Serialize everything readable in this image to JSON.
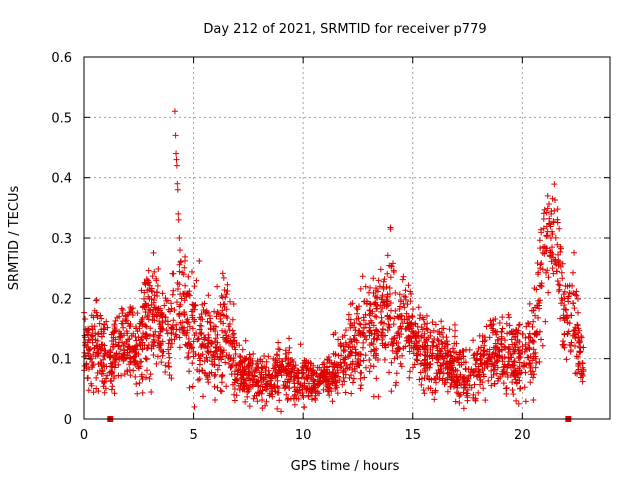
{
  "chart_data": {
    "type": "scatter",
    "title": "Day 212 of 2021, SRMTID for receiver p779",
    "xlabel": "GPS time / hours",
    "ylabel": "SRMTID / TECUs",
    "xlim": [
      0,
      24
    ],
    "ylim": [
      0,
      0.6
    ],
    "x_ticks": [
      0,
      5,
      10,
      15,
      20
    ],
    "x_tick_labels": [
      "0",
      "5",
      "10",
      "15",
      "20"
    ],
    "y_ticks": [
      0,
      0.1,
      0.2,
      0.3,
      0.4,
      0.5,
      0.6
    ],
    "y_tick_labels": [
      "0",
      "0.1",
      "0.2",
      "0.3",
      "0.4",
      "0.5",
      "0.6"
    ],
    "grid": true,
    "marker": "+",
    "color": "#e00000",
    "gap_markers_x": [
      1.2,
      22.1
    ],
    "envelope": {
      "description": "approximate central tendency and spread of the dense point cloud, hour by hour",
      "x": [
        0.0,
        0.5,
        1.0,
        1.5,
        2.0,
        2.5,
        3.0,
        3.5,
        4.0,
        4.2,
        4.5,
        5.0,
        5.5,
        6.0,
        6.5,
        7.0,
        7.5,
        8.0,
        8.5,
        9.0,
        9.5,
        10.0,
        10.5,
        11.0,
        11.5,
        12.0,
        12.5,
        13.0,
        13.5,
        14.0,
        14.5,
        15.0,
        15.5,
        16.0,
        16.5,
        17.0,
        17.5,
        18.0,
        18.5,
        19.0,
        19.5,
        20.0,
        20.5,
        21.0,
        21.3,
        21.6,
        22.0,
        22.3,
        22.6,
        22.8
      ],
      "center": [
        0.12,
        0.12,
        0.1,
        0.12,
        0.13,
        0.11,
        0.17,
        0.15,
        0.15,
        0.17,
        0.2,
        0.14,
        0.13,
        0.12,
        0.15,
        0.08,
        0.07,
        0.06,
        0.07,
        0.08,
        0.07,
        0.07,
        0.06,
        0.07,
        0.08,
        0.11,
        0.13,
        0.15,
        0.16,
        0.18,
        0.15,
        0.14,
        0.12,
        0.11,
        0.1,
        0.08,
        0.07,
        0.08,
        0.11,
        0.11,
        0.1,
        0.1,
        0.12,
        0.27,
        0.31,
        0.28,
        0.15,
        0.18,
        0.12,
        0.08
      ],
      "spread": [
        0.04,
        0.04,
        0.04,
        0.04,
        0.04,
        0.04,
        0.06,
        0.05,
        0.05,
        0.04,
        0.06,
        0.06,
        0.05,
        0.05,
        0.06,
        0.03,
        0.03,
        0.02,
        0.03,
        0.03,
        0.03,
        0.03,
        0.02,
        0.02,
        0.03,
        0.04,
        0.05,
        0.05,
        0.06,
        0.07,
        0.05,
        0.04,
        0.04,
        0.04,
        0.03,
        0.03,
        0.03,
        0.03,
        0.04,
        0.04,
        0.04,
        0.04,
        0.05,
        0.07,
        0.05,
        0.07,
        0.05,
        0.06,
        0.04,
        0.02
      ]
    },
    "spike_points": {
      "x": [
        4.15,
        4.18,
        4.2,
        4.22,
        4.24,
        4.26,
        4.28,
        4.3,
        4.32,
        4.35,
        4.38,
        4.4
      ],
      "y": [
        0.51,
        0.47,
        0.44,
        0.43,
        0.42,
        0.39,
        0.38,
        0.34,
        0.33,
        0.3,
        0.28,
        0.26
      ]
    }
  }
}
